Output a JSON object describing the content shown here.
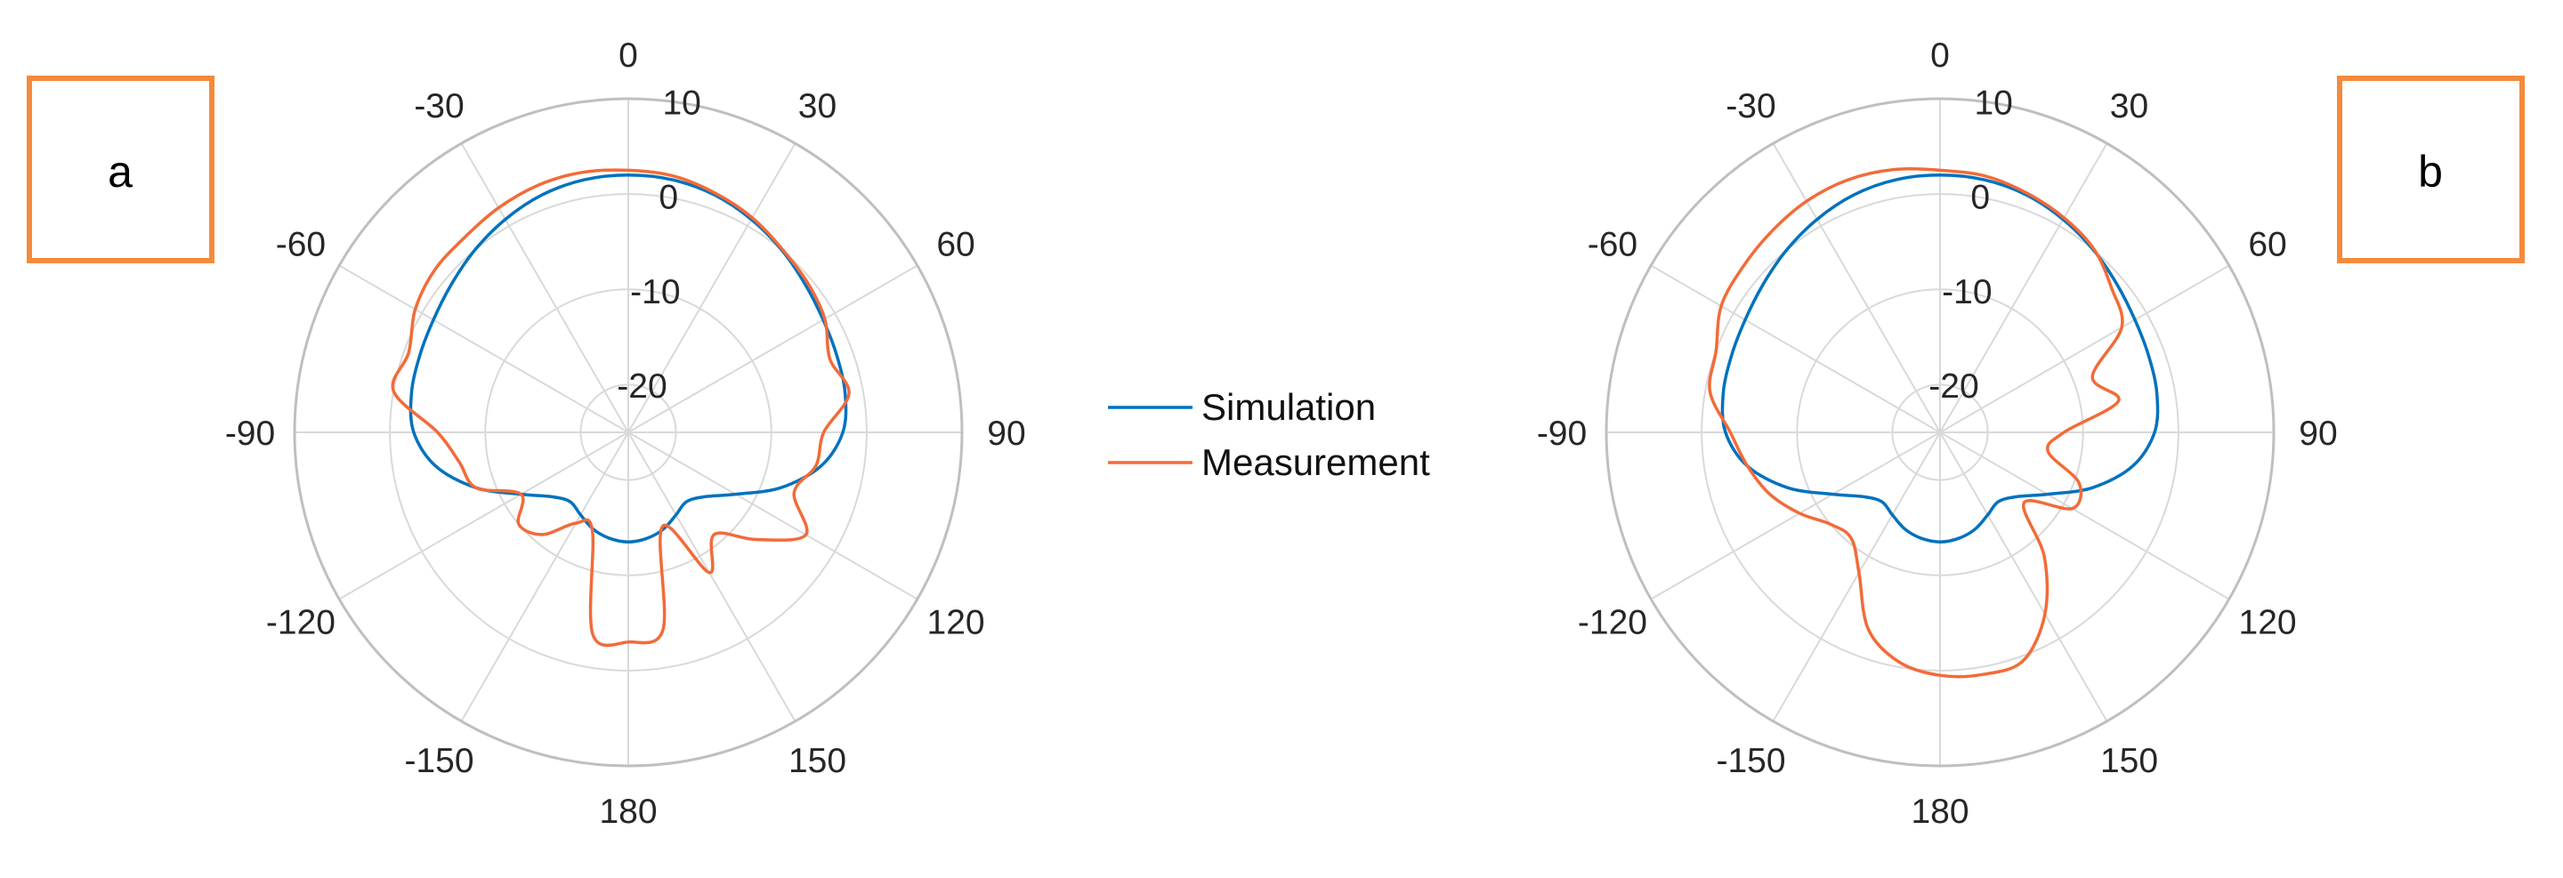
{
  "colors": {
    "simulation": "#0072BD",
    "measurement": "#F26B38",
    "panel_box": "#F58A3C",
    "grid": "#D9D9D9",
    "outer_ring": "#BFBFBF",
    "text": "#262626"
  },
  "panels": [
    {
      "label": "a"
    },
    {
      "label": "b"
    }
  ],
  "legend": {
    "simulation": "Simulation",
    "measurement": "Measurement"
  },
  "chart_data": [
    {
      "type": "polar-line",
      "panel_label": "a",
      "theta_zero_location": "top",
      "theta_direction": "clockwise",
      "theta_ticks": [
        0,
        30,
        60,
        90,
        120,
        150,
        180,
        -150,
        -120,
        -90,
        -60,
        -30
      ],
      "r_ticks": [
        -20,
        -10,
        0,
        10
      ],
      "r_lim": [
        -25,
        10
      ],
      "grid": true,
      "legend_location": "between panels",
      "series": [
        {
          "name": "Simulation",
          "theta": [
            0,
            10,
            20,
            30,
            40,
            50,
            60,
            70,
            80,
            90,
            100,
            110,
            120,
            130,
            140,
            150,
            160,
            170,
            180,
            -170,
            -160,
            -150,
            -140,
            -130,
            -120,
            -110,
            -100,
            -90,
            -80,
            -70,
            -60,
            -50,
            -40,
            -30,
            -20,
            -10
          ],
          "r": [
            2,
            1.9,
            1.5,
            0.8,
            0,
            -0.8,
            -1.4,
            -1.7,
            -1.9,
            -2.5,
            -4.5,
            -8,
            -12,
            -14.5,
            -15.5,
            -15,
            -14.2,
            -13.7,
            -13.5,
            -13.7,
            -14.2,
            -15,
            -15.5,
            -14.5,
            -12,
            -8,
            -4.5,
            -2.5,
            -1.9,
            -1.7,
            -1.4,
            -0.8,
            0,
            0.8,
            1.5,
            1.9
          ]
        },
        {
          "name": "Measurement",
          "theta": [
            0,
            10,
            20,
            30,
            40,
            50,
            60,
            70,
            80,
            90,
            100,
            110,
            120,
            130,
            140,
            150,
            160,
            170,
            180,
            -170,
            -160,
            -150,
            -140,
            -130,
            -120,
            -110,
            -100,
            -90,
            -80,
            -70,
            -60,
            -50,
            -40,
            -30,
            -20,
            -10
          ],
          "r": [
            2.5,
            2.3,
            1.7,
            1.0,
            0.1,
            -0.5,
            -1.2,
            -2.5,
            -1.5,
            -4.5,
            -5.0,
            -6.5,
            -3.5,
            -7.5,
            -11.0,
            -8.0,
            -14.5,
            -4.0,
            -3.0,
            -3.5,
            -14.0,
            -14.0,
            -11.0,
            -10.0,
            -12.0,
            -8.0,
            -7.0,
            -5.0,
            0.0,
            -0.5,
            0.8,
            1.5,
            1.7,
            2.2,
            2.6,
            2.7
          ]
        }
      ]
    },
    {
      "type": "polar-line",
      "panel_label": "b",
      "theta_zero_location": "top",
      "theta_direction": "clockwise",
      "theta_ticks": [
        0,
        30,
        60,
        90,
        120,
        150,
        180,
        -150,
        -120,
        -90,
        -60,
        -30
      ],
      "r_ticks": [
        -20,
        -10,
        0,
        10
      ],
      "r_lim": [
        -25,
        10
      ],
      "grid": true,
      "legend_location": "between panels",
      "series": [
        {
          "name": "Simulation",
          "theta": [
            0,
            10,
            20,
            30,
            40,
            50,
            60,
            70,
            80,
            90,
            100,
            110,
            120,
            130,
            140,
            150,
            160,
            170,
            180,
            -170,
            -160,
            -150,
            -140,
            -130,
            -120,
            -110,
            -100,
            -90,
            -80,
            -70,
            -60,
            -50,
            -40,
            -30,
            -20,
            -10
          ],
          "r": [
            2,
            1.9,
            1.5,
            0.8,
            0,
            -0.8,
            -1.4,
            -1.7,
            -1.9,
            -2.5,
            -4.5,
            -8,
            -12,
            -14.5,
            -15.5,
            -15,
            -14.2,
            -13.7,
            -13.5,
            -13.7,
            -14.2,
            -15,
            -15.5,
            -14.5,
            -12,
            -8,
            -4.5,
            -2.5,
            -1.9,
            -1.7,
            -1.4,
            -0.8,
            0,
            0.8,
            1.5,
            1.9
          ]
        },
        {
          "name": "Measurement",
          "theta": [
            0,
            10,
            20,
            30,
            40,
            50,
            60,
            70,
            80,
            90,
            100,
            110,
            120,
            130,
            140,
            150,
            160,
            170,
            180,
            -170,
            -160,
            -150,
            -140,
            -130,
            -120,
            -110,
            -100,
            -90,
            -80,
            -70,
            -60,
            -50,
            -40,
            -30,
            -20,
            -10
          ],
          "r": [
            2.5,
            2.3,
            1.7,
            1.0,
            0.1,
            -1.5,
            -3.0,
            -8.0,
            -6.0,
            -12.0,
            -13.5,
            -9.5,
            -9.0,
            -13.5,
            -8.0,
            -3.0,
            0.5,
            0.8,
            0.5,
            -0.5,
            -3.0,
            -8.0,
            -10.5,
            -10.0,
            -8.0,
            -6.0,
            -4.5,
            -3.0,
            -0.5,
            0.0,
            1.5,
            2.0,
            2.5,
            3.0,
            3.2,
            3.0
          ]
        }
      ]
    }
  ]
}
